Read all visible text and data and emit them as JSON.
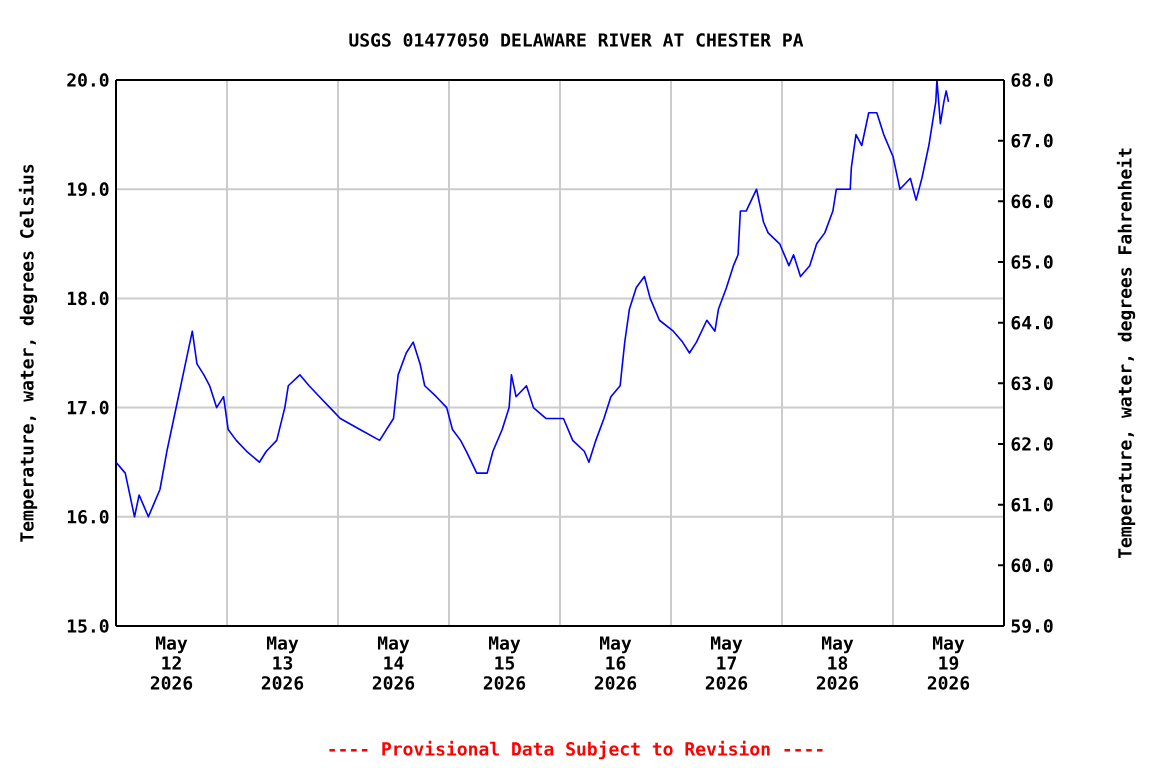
{
  "chart_data": {
    "type": "line",
    "title": "USGS 01477050 DELAWARE RIVER AT CHESTER PA",
    "ylabel": "Temperature, water, degrees Celsius",
    "y2label": "Temperature, water, degrees Fahrenheit",
    "annotations": [
      "---- Provisional Data Subject to Revision ----"
    ],
    "color": "#0000ff",
    "grid": true,
    "xlim": [
      "2026-05-12T00:00",
      "2026-05-20T00:00"
    ],
    "ylim": [
      15,
      20
    ],
    "y2lim": [
      59,
      68
    ],
    "yticks": [
      {
        "value": 15,
        "label": "15.0"
      },
      {
        "value": 16,
        "label": "16.0"
      },
      {
        "value": 17,
        "label": "17.0"
      },
      {
        "value": 18,
        "label": "18.0"
      },
      {
        "value": 19,
        "label": "19.0"
      },
      {
        "value": 20,
        "label": "20.0"
      }
    ],
    "y2ticks": [
      {
        "value": 59,
        "label": "59.0"
      },
      {
        "value": 60,
        "label": "60.0"
      },
      {
        "value": 61,
        "label": "61.0"
      },
      {
        "value": 62,
        "label": "62.0"
      },
      {
        "value": 63,
        "label": "63.0"
      },
      {
        "value": 64,
        "label": "64.0"
      },
      {
        "value": 65,
        "label": "65.0"
      },
      {
        "value": 66,
        "label": "66.0"
      },
      {
        "value": 67,
        "label": "67.0"
      },
      {
        "value": 68,
        "label": "68.0"
      }
    ],
    "xticks": [
      {
        "value": "2026-05-13T00:00",
        "label": null
      },
      {
        "value": "2026-05-14T00:00",
        "label": null
      },
      {
        "value": "2026-05-15T00:00",
        "label": null
      },
      {
        "value": "2026-05-16T00:00",
        "label": null
      },
      {
        "value": "2026-05-17T00:00",
        "label": null
      },
      {
        "value": "2026-05-18T00:00",
        "label": null
      },
      {
        "value": "2026-05-19T00:00",
        "label": null
      },
      {
        "value": "2026-05-12T12:00",
        "label": "May 12 2026"
      },
      {
        "value": "2026-05-13T12:00",
        "label": "May 13 2026"
      },
      {
        "value": "2026-05-14T12:00",
        "label": "May 14 2026"
      },
      {
        "value": "2026-05-15T12:00",
        "label": "May 15 2026"
      },
      {
        "value": "2026-05-16T12:00",
        "label": "May 16 2026"
      },
      {
        "value": "2026-05-17T12:00",
        "label": "May 17 2026"
      },
      {
        "value": "2026-05-18T12:00",
        "label": "May 18 2026"
      },
      {
        "value": "2026-05-19T12:00",
        "label": "May 19 2026"
      }
    ],
    "x": [
      "2026-05-12T00:00",
      "2026-05-12T02:00",
      "2026-05-12T03:00",
      "2026-05-12T04:00",
      "2026-05-12T05:00",
      "2026-05-12T06:00",
      "2026-05-12T07:00",
      "2026-05-12T08:00",
      "2026-05-12T09:30",
      "2026-05-12T11:00",
      "2026-05-12T12:30",
      "2026-05-12T14:00",
      "2026-05-12T15:00",
      "2026-05-12T16:30",
      "2026-05-12T17:30",
      "2026-05-12T19:00",
      "2026-05-12T20:15",
      "2026-05-12T21:45",
      "2026-05-12T23:15",
      "2026-05-13T00:15",
      "2026-05-13T02:00",
      "2026-05-13T04:15",
      "2026-05-13T07:00",
      "2026-05-13T08:30",
      "2026-05-13T10:45",
      "2026-05-13T12:30",
      "2026-05-13T13:15",
      "2026-05-13T15:45",
      "2026-05-13T17:45",
      "2026-05-13T20:00",
      "2026-05-13T22:15",
      "2026-05-14T00:30",
      "2026-05-14T04:45",
      "2026-05-14T09:00",
      "2026-05-14T12:00",
      "2026-05-14T13:00",
      "2026-05-14T14:45",
      "2026-05-14T16:15",
      "2026-05-14T17:45",
      "2026-05-14T18:45",
      "2026-05-14T21:15",
      "2026-05-14T23:30",
      "2026-05-15T00:45",
      "2026-05-15T02:30",
      "2026-05-15T03:45",
      "2026-05-15T06:00",
      "2026-05-15T08:15",
      "2026-05-15T09:30",
      "2026-05-15T11:30",
      "2026-05-15T13:00",
      "2026-05-15T13:30",
      "2026-05-15T14:30",
      "2026-05-15T16:45",
      "2026-05-15T18:15",
      "2026-05-15T21:00",
      "2026-05-16T00:45",
      "2026-05-16T02:45",
      "2026-05-16T05:15",
      "2026-05-16T06:15",
      "2026-05-16T07:45",
      "2026-05-16T09:30",
      "2026-05-16T11:00",
      "2026-05-16T13:00",
      "2026-05-16T13:30",
      "2026-05-16T14:00",
      "2026-05-16T15:00",
      "2026-05-16T16:30",
      "2026-05-16T18:15",
      "2026-05-16T19:30",
      "2026-05-16T21:30",
      "2026-05-17T00:30",
      "2026-05-17T02:30",
      "2026-05-17T04:00",
      "2026-05-17T05:30",
      "2026-05-17T07:45",
      "2026-05-17T09:30",
      "2026-05-17T10:15",
      "2026-05-17T12:00",
      "2026-05-17T13:30",
      "2026-05-17T14:30",
      "2026-05-17T15:00",
      "2026-05-17T16:15",
      "2026-05-17T18:30",
      "2026-05-17T20:00",
      "2026-05-17T21:00",
      "2026-05-17T23:30",
      "2026-05-18T01:30",
      "2026-05-18T02:30",
      "2026-05-18T04:00",
      "2026-05-18T06:00",
      "2026-05-18T07:30",
      "2026-05-18T09:15",
      "2026-05-18T11:00",
      "2026-05-18T11:45",
      "2026-05-18T14:45",
      "2026-05-18T15:00",
      "2026-05-18T16:00",
      "2026-05-18T17:15",
      "2026-05-18T18:45",
      "2026-05-18T20:30",
      "2026-05-18T22:00",
      "2026-05-19T00:00",
      "2026-05-19T01:30",
      "2026-05-19T03:45",
      "2026-05-19T05:00",
      "2026-05-19T06:15",
      "2026-05-19T07:45",
      "2026-05-19T09:15",
      "2026-05-19T09:30",
      "2026-05-19T10:15",
      "2026-05-19T11:00",
      "2026-05-19T11:30",
      "2026-05-19T12:00"
    ],
    "values": [
      16.5,
      16.4,
      16.2,
      16.0,
      16.2,
      16.1,
      16.0,
      16.1,
      16.25,
      16.6,
      16.9,
      17.2,
      17.4,
      17.7,
      17.4,
      17.3,
      17.2,
      17.0,
      17.1,
      16.8,
      16.7,
      16.6,
      16.5,
      16.6,
      16.7,
      17.0,
      17.2,
      17.3,
      17.2,
      17.1,
      17.0,
      16.9,
      16.8,
      16.7,
      16.9,
      17.3,
      17.5,
      17.6,
      17.4,
      17.2,
      17.1,
      17.0,
      16.8,
      16.7,
      16.6,
      16.4,
      16.4,
      16.6,
      16.8,
      17.0,
      17.3,
      17.1,
      17.2,
      17.0,
      16.9,
      16.9,
      16.7,
      16.6,
      16.5,
      16.7,
      16.9,
      17.1,
      17.2,
      17.4,
      17.6,
      17.9,
      18.1,
      18.2,
      18.0,
      17.8,
      17.7,
      17.6,
      17.5,
      17.6,
      17.8,
      17.7,
      17.9,
      18.1,
      18.3,
      18.4,
      18.8,
      18.8,
      19.0,
      18.7,
      18.6,
      18.5,
      18.3,
      18.4,
      18.2,
      18.3,
      18.5,
      18.6,
      18.8,
      19.0,
      19.0,
      19.2,
      19.5,
      19.4,
      19.7,
      19.7,
      19.5,
      19.3,
      19.0,
      19.1,
      18.9,
      19.1,
      19.4,
      19.8,
      20.0,
      19.6,
      19.8,
      19.9,
      19.8
    ]
  }
}
